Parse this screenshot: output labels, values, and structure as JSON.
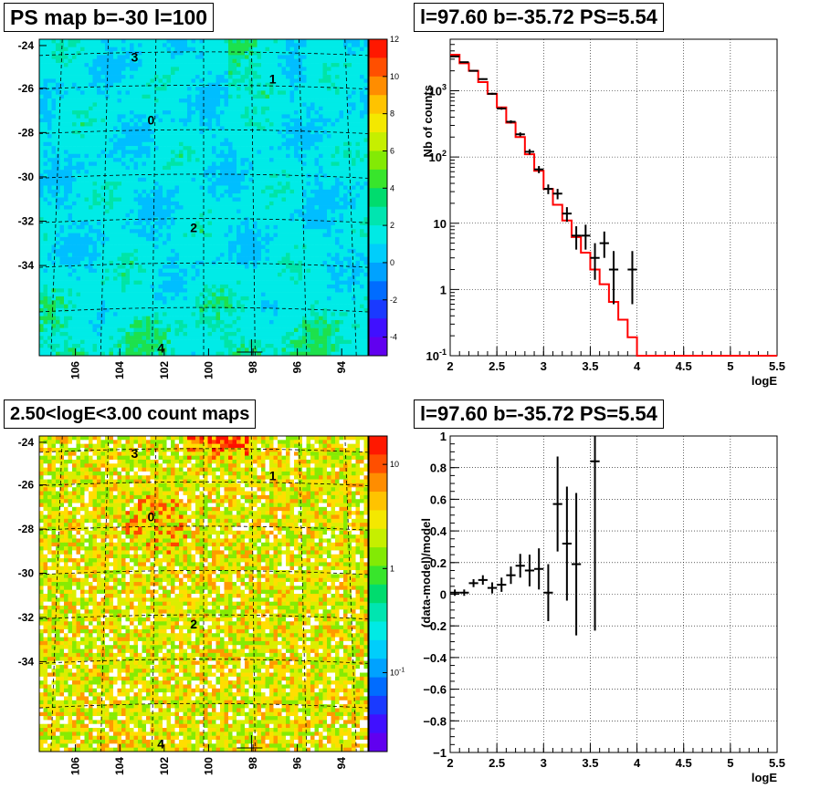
{
  "chart_data": [
    {
      "type": "heatmap",
      "title": "PS map b=-30 l=100",
      "x_ticks": [
        "106",
        "104",
        "102",
        "100",
        "98",
        "96",
        "94"
      ],
      "y_ticks": [
        "-24",
        "-26",
        "-28",
        "-30",
        "-32",
        "-34"
      ],
      "colorbar": {
        "scale": "linear",
        "range": [
          -5,
          12
        ],
        "ticks": [
          "12",
          "10",
          "8",
          "6",
          "4",
          "2",
          "0",
          "-2",
          "-4"
        ]
      },
      "annotations": [
        "3",
        "1",
        "0",
        "2",
        "4"
      ]
    },
    {
      "type": "line",
      "title": "l=97.60 b=-35.72 PS=5.54",
      "xlabel": "logE",
      "ylabel": "Nb of counts",
      "xlim": [
        2,
        5.5
      ],
      "ylim": [
        0.1,
        6000
      ],
      "y_scale": "log",
      "grid": true,
      "x_ticks": [
        "2",
        "2.5",
        "3",
        "3.5",
        "4",
        "4.5",
        "5",
        "5.5"
      ],
      "y_ticks": [
        "10",
        "1",
        "10"
      ],
      "y_tick_exponents": [
        "3",
        "2",
        "-1"
      ],
      "series": [
        {
          "style": "points-with-errors",
          "color": "#000000",
          "x": [
            2.05,
            2.15,
            2.25,
            2.35,
            2.45,
            2.55,
            2.65,
            2.75,
            2.85,
            2.95,
            3.05,
            3.15,
            3.25,
            3.35,
            3.45,
            3.55,
            3.65,
            3.75,
            3.95
          ],
          "y": [
            3300,
            2700,
            2000,
            1500,
            900,
            540,
            340,
            220,
            120,
            65,
            33,
            28,
            14,
            6.5,
            6.5,
            3,
            5,
            2,
            2
          ],
          "err_lo": [
            60,
            55,
            45,
            38,
            30,
            23,
            18,
            15,
            11,
            8,
            5.5,
            5,
            3.5,
            2.5,
            2.5,
            1.6,
            2,
            1.4,
            1.4
          ],
          "err_hi": [
            60,
            55,
            45,
            38,
            30,
            23,
            18,
            15,
            11,
            8,
            5.5,
            5,
            3.5,
            2.5,
            3,
            2,
            2.5,
            1.8,
            1.8
          ]
        },
        {
          "style": "step",
          "color": "#ff0000",
          "edges": [
            2,
            2.1,
            2.2,
            2.3,
            2.4,
            2.5,
            2.6,
            2.7,
            2.8,
            2.9,
            3,
            3.1,
            3.2,
            3.3,
            3.4,
            3.5,
            3.6,
            3.7,
            3.8,
            3.9,
            4,
            5.5
          ],
          "values": [
            3500,
            2600,
            2000,
            1350,
            900,
            560,
            330,
            200,
            110,
            62,
            33,
            19,
            11,
            6.2,
            3.6,
            2,
            1.2,
            0.65,
            0.35,
            0.19,
            0.1
          ]
        }
      ]
    },
    {
      "type": "heatmap",
      "title": "2.50<logE<3.00 count maps",
      "x_ticks": [
        "106",
        "104",
        "102",
        "100",
        "98",
        "96",
        "94"
      ],
      "y_ticks": [
        "-24",
        "-26",
        "-28",
        "-30",
        "-32",
        "-34"
      ],
      "colorbar": {
        "scale": "log",
        "ticks": [
          "10",
          "1",
          "10"
        ],
        "tick_exponents": [
          "",
          "",
          "-1"
        ]
      },
      "annotations": [
        "3",
        "1",
        "0",
        "2",
        "4"
      ]
    },
    {
      "type": "scatter",
      "title": "l=97.60 b=-35.72 PS=5.54",
      "xlabel": "logE",
      "ylabel": "(data-model)/model",
      "xlim": [
        2,
        5.5
      ],
      "ylim": [
        -1,
        1
      ],
      "grid": true,
      "x_ticks": [
        "2",
        "2.5",
        "3",
        "3.5",
        "4",
        "4.5",
        "5",
        "5.5"
      ],
      "y_ticks": [
        "1",
        "0.8",
        "0.6",
        "0.4",
        "0.2",
        "0",
        "−0.2",
        "−0.4",
        "−0.6",
        "−0.8",
        "−1"
      ],
      "series": [
        {
          "style": "points-with-errors",
          "color": "#000000",
          "x": [
            2.05,
            2.15,
            2.25,
            2.35,
            2.45,
            2.55,
            2.65,
            2.75,
            2.85,
            2.95,
            3.05,
            3.15,
            3.25,
            3.35,
            3.55
          ],
          "y": [
            0.01,
            0.01,
            0.07,
            0.09,
            0.04,
            0.06,
            0.12,
            0.18,
            0.15,
            0.16,
            0.01,
            0.57,
            0.32,
            0.19,
            0.84
          ],
          "err": [
            0.02,
            0.02,
            0.025,
            0.03,
            0.035,
            0.045,
            0.055,
            0.075,
            0.1,
            0.13,
            0.18,
            0.3,
            0.36,
            0.45,
            1.07
          ]
        }
      ]
    }
  ]
}
